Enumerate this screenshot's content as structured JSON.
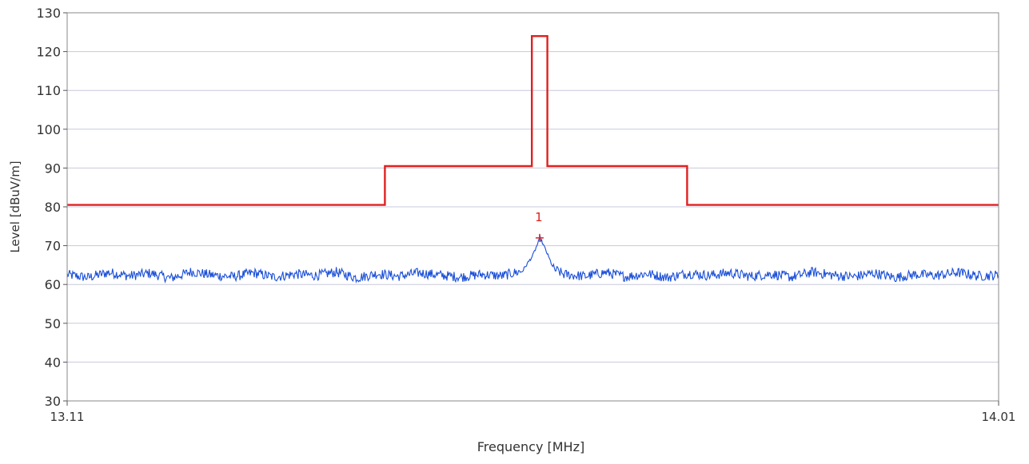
{
  "chart_data": {
    "type": "line",
    "title": "",
    "xlabel": "Frequency [MHz]",
    "ylabel": "Level [dBuV/m]",
    "xlim": [
      13.11,
      14.01
    ],
    "ylim": [
      30,
      130
    ],
    "x_ticks": [
      13.11,
      14.01
    ],
    "x_tick_labels": [
      "13.11",
      "14.01"
    ],
    "y_ticks": [
      30,
      40,
      50,
      60,
      70,
      80,
      90,
      100,
      110,
      120,
      130
    ],
    "y_tick_labels": [
      "30",
      "40",
      "50",
      "60",
      "70",
      "80",
      "90",
      "100",
      "110",
      "120",
      "130"
    ],
    "grid": true,
    "legend": "none",
    "series": [
      {
        "color": "#e02020",
        "style": "step",
        "x": [
          13.11,
          13.417,
          13.417,
          13.559,
          13.559,
          13.574,
          13.574,
          13.709,
          13.709,
          14.01
        ],
        "y": [
          80.5,
          80.5,
          90.5,
          90.5,
          124,
          124,
          90.5,
          90.5,
          80.5,
          80.5
        ]
      },
      {
        "color": "#1a4fd8",
        "style": "line",
        "x": [
          13.11,
          13.13,
          13.15,
          13.17,
          13.19,
          13.21,
          13.23,
          13.25,
          13.27,
          13.29,
          13.31,
          13.33,
          13.35,
          13.37,
          13.39,
          13.41,
          13.43,
          13.45,
          13.47,
          13.49,
          13.51,
          13.53,
          13.55,
          13.56,
          13.567,
          13.573,
          13.58,
          13.59,
          13.61,
          13.63,
          13.65,
          13.67,
          13.69,
          13.71,
          13.73,
          13.75,
          13.77,
          13.79,
          13.81,
          13.83,
          13.85,
          13.87,
          13.89,
          13.91,
          13.93,
          13.95,
          13.97,
          13.99,
          14.01
        ],
        "y": [
          62.5,
          61.8,
          63.1,
          62.2,
          62.9,
          61.6,
          63.3,
          62.4,
          62.0,
          63.0,
          61.9,
          62.7,
          62.3,
          63.2,
          61.7,
          62.8,
          62.1,
          63.0,
          62.4,
          61.9,
          62.6,
          62.2,
          63.5,
          67.5,
          72,
          68.5,
          64,
          62.6,
          62.1,
          63.1,
          62.0,
          62.8,
          61.8,
          62.9,
          62.3,
          63.0,
          62.1,
          62.7,
          61.9,
          63.2,
          62.4,
          62.0,
          62.9,
          61.8,
          62.6,
          62.3,
          63.1,
          62.2,
          62.4
        ]
      }
    ],
    "markers": [
      {
        "label": "1",
        "x": 13.5665,
        "y": 72,
        "color": "#e02020"
      }
    ]
  }
}
